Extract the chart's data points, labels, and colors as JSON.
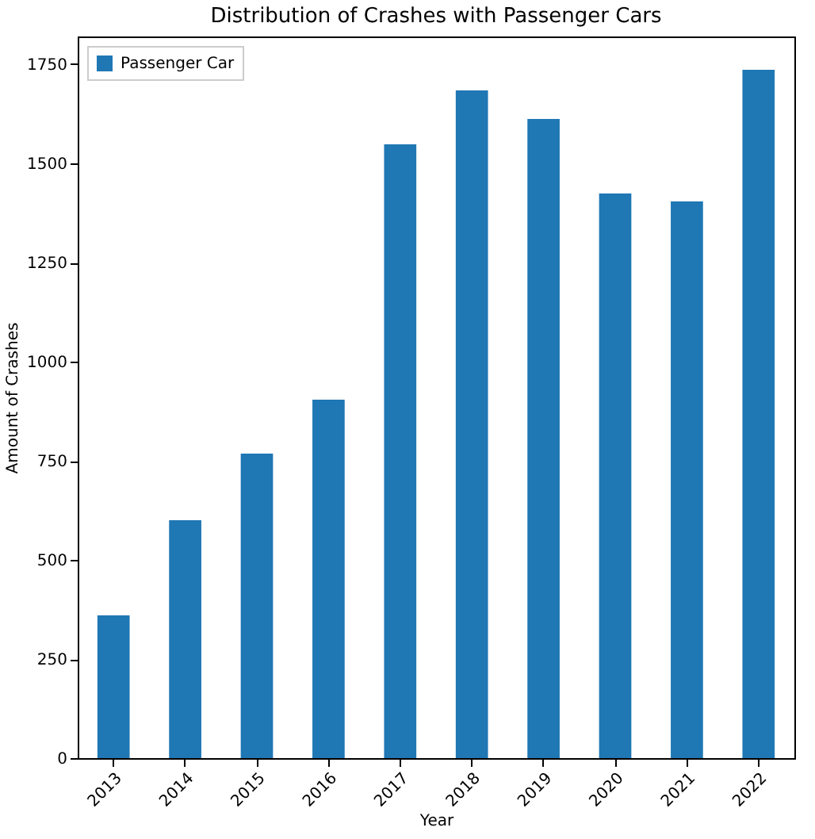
{
  "chart_data": {
    "type": "bar",
    "title": "Distribution of Crashes with Passenger Cars",
    "xlabel": "Year",
    "ylabel": "Amount of Crashes",
    "categories": [
      "2013",
      "2014",
      "2015",
      "2016",
      "2017",
      "2018",
      "2019",
      "2020",
      "2021",
      "2022"
    ],
    "series": [
      {
        "name": "Passenger Car",
        "color": "#1f77b4",
        "values": [
          360,
          600,
          768,
          904,
          1548,
          1684,
          1612,
          1424,
          1404,
          1736
        ]
      }
    ],
    "ylim": [
      0,
      1820
    ],
    "yticks": [
      0,
      250,
      500,
      750,
      1000,
      1250,
      1500,
      1750
    ],
    "legend": "top left",
    "grid": false
  }
}
